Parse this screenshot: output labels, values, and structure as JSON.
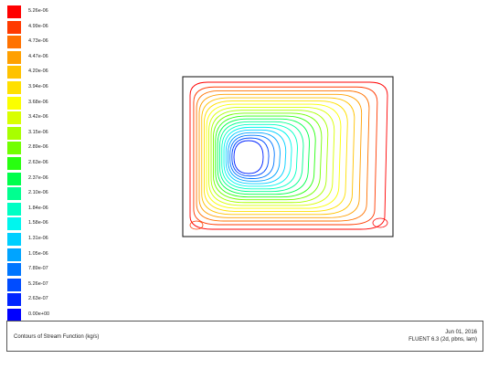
{
  "colormap": {
    "labels": [
      "5.26e-06",
      "4.99e-06",
      "4.73e-06",
      "4.47e-06",
      "4.20e-06",
      "3.94e-06",
      "3.68e-06",
      "3.42e-06",
      "3.15e-06",
      "2.89e-06",
      "2.63e-06",
      "2.37e-06",
      "2.10e-06",
      "1.84e-06",
      "1.58e-06",
      "1.31e-06",
      "1.05e-06",
      "7.89e-07",
      "5.26e-07",
      "2.63e-07",
      "0.00e+00"
    ],
    "colors": [
      "#ff0000",
      "#ff3a00",
      "#ff7200",
      "#ffa000",
      "#ffc200",
      "#ffe000",
      "#fbff00",
      "#d9ff00",
      "#a8ff00",
      "#72ff00",
      "#28ff10",
      "#00ff4c",
      "#00ff90",
      "#00ffc4",
      "#00f6ee",
      "#00cfff",
      "#00a4ff",
      "#0076ff",
      "#004cff",
      "#0024ff",
      "#0000ff"
    ]
  },
  "contours": {
    "levels": 21,
    "min_value": 0.0,
    "max_value": 5.26e-06
  },
  "footer": {
    "title": "Contours of Stream Function (kg/s)",
    "date": "Jun 01, 2016",
    "solver": "FLUENT 6.3 (2d, pbns, lam)"
  }
}
